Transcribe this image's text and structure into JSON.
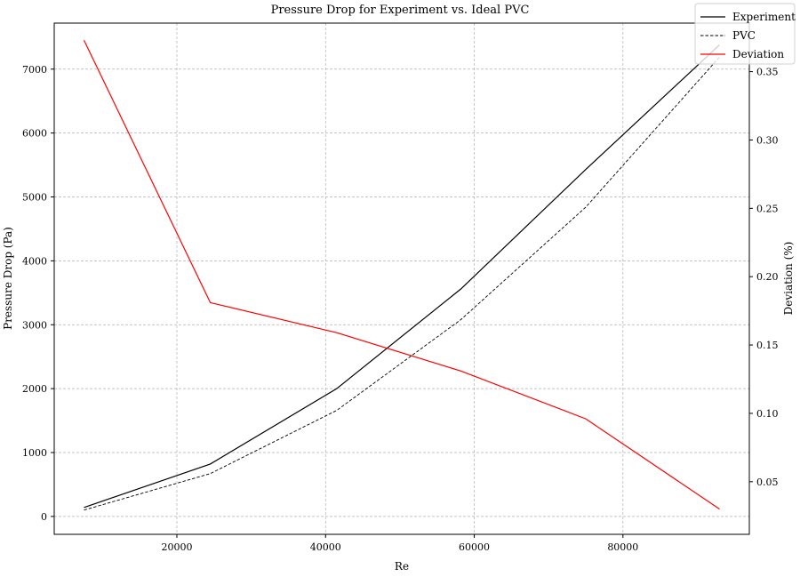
{
  "chart_data": {
    "type": "line",
    "title": "Pressure Drop for Experiment vs. Ideal PVC",
    "xlabel": "Re",
    "ylabel": "Pressure Drop (Pa)",
    "y2label": "Deviation (%)",
    "xlim": [
      3500,
      97000
    ],
    "ylim": [
      -280,
      7720
    ],
    "y2lim": [
      0.0115,
      0.3855
    ],
    "grid": true,
    "legend_position": "top-right",
    "xticks": [
      20000,
      40000,
      60000,
      80000
    ],
    "yticks": [
      0,
      1000,
      2000,
      3000,
      4000,
      5000,
      6000,
      7000
    ],
    "y2ticks": [
      0.05,
      0.1,
      0.15,
      0.2,
      0.25,
      0.3,
      0.35
    ],
    "x": [
      7500,
      24500,
      41500,
      58200,
      75000,
      93000
    ],
    "series": [
      {
        "name": "Experiment",
        "axis": "left",
        "color": "#000000",
        "style": "solid",
        "values": [
          140,
          820,
          2000,
          3560,
          5430,
          7380
        ]
      },
      {
        "name": "PVC",
        "axis": "left",
        "color": "#000000",
        "style": "dashed",
        "values": [
          100,
          670,
          1660,
          3080,
          4840,
          7190
        ]
      },
      {
        "name": "Deviation",
        "axis": "right",
        "color": "#ff0000",
        "style": "solid",
        "values": [
          0.373,
          0.181,
          0.159,
          0.131,
          0.096,
          0.03
        ]
      }
    ]
  }
}
